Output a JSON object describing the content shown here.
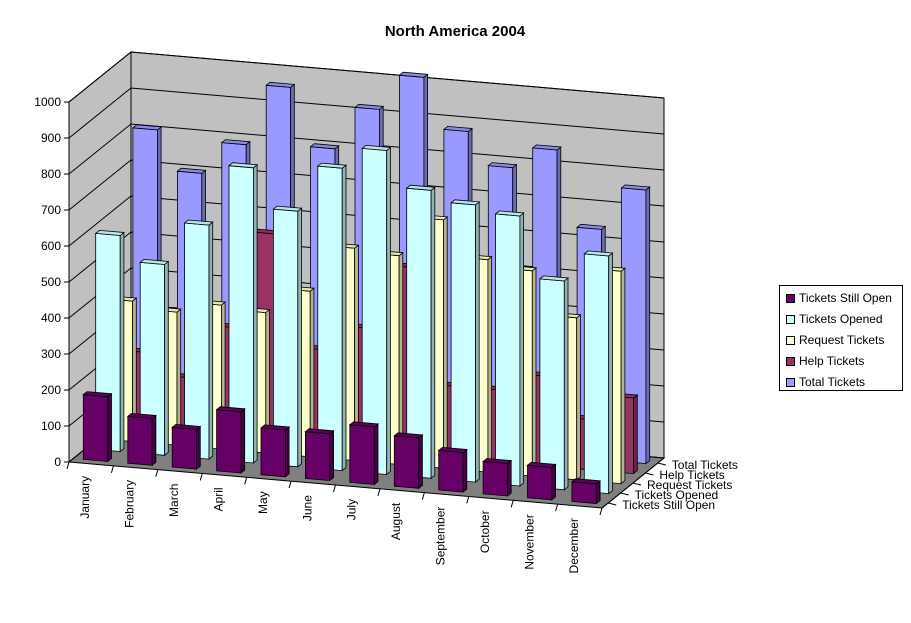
{
  "chart_data": {
    "type": "bar",
    "title": "North America 2004",
    "xlabel": "",
    "ylabel": "",
    "ylim": [
      0,
      1000
    ],
    "yticks": [
      "0",
      "100",
      "200",
      "300",
      "400",
      "500",
      "600",
      "700",
      "800",
      "900",
      "1000"
    ],
    "categories": [
      "January",
      "February",
      "March",
      "April",
      "May",
      "June",
      "July",
      "August",
      "September",
      "October",
      "November",
      "December"
    ],
    "depth_categories": [
      "Tickets Still Open",
      "Tickets Opened",
      "Request Tickets",
      "Help Tickets",
      "Total Tickets"
    ],
    "series": [
      {
        "name": "Tickets Still Open",
        "color": "#660066",
        "values": [
          180,
          130,
          110,
          170,
          130,
          130,
          160,
          140,
          110,
          90,
          90,
          55
        ]
      },
      {
        "name": "Tickets Opened",
        "color": "#CCFFFF",
        "values": [
          600,
          530,
          650,
          820,
          710,
          840,
          900,
          800,
          770,
          750,
          580,
          660
        ]
      },
      {
        "name": "Request Tickets",
        "color": "#FFFFCC",
        "values": [
          390,
          370,
          400,
          390,
          460,
          590,
          580,
          690,
          590,
          570,
          450,
          590
        ]
      },
      {
        "name": "Help Tickets",
        "color": "#993366",
        "values": [
          220,
          160,
          310,
          580,
          270,
          340,
          520,
          200,
          200,
          250,
          140,
          210
        ]
      },
      {
        "name": "Total Tickets",
        "color": "#9999FF",
        "values": [
          810,
          700,
          790,
          960,
          800,
          920,
          1020,
          880,
          790,
          850,
          640,
          760
        ]
      }
    ],
    "grid": true,
    "legend_position": "right"
  }
}
